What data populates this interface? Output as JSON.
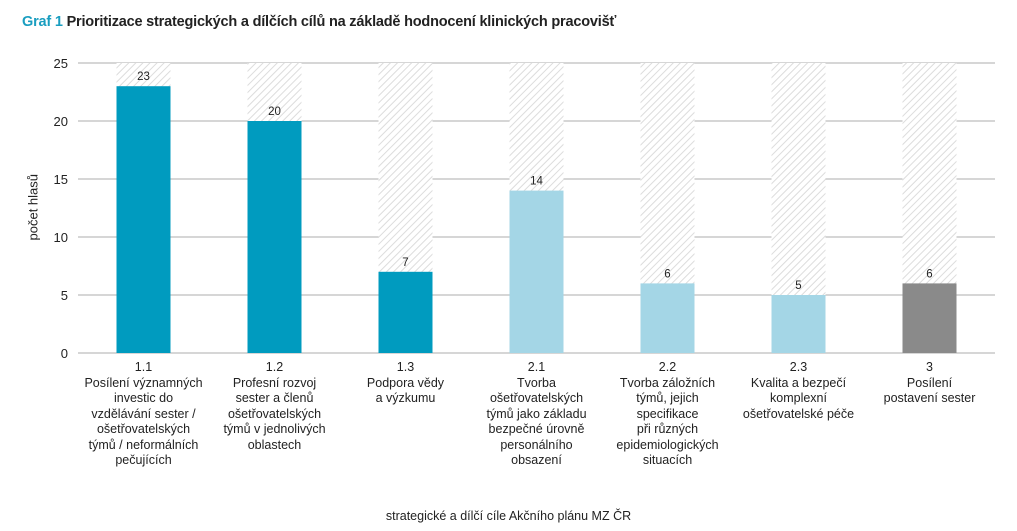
{
  "title": {
    "prefix": "Graf 1",
    "text": "Prioritizace strategických a dílčích cílů na základě hodnocení klinických pracovišť"
  },
  "colors": {
    "accent": "#1a9ec0",
    "dark_teal": "#009bbf",
    "light_blue": "#a4d6e6",
    "gray": "#8a8a8a",
    "grid": "#d6d6d6",
    "hatch": "#e2e2e2"
  },
  "chart_data": {
    "type": "bar",
    "title": "Graf 1 Prioritizace strategických a dílčích cílů na základě hodnocení klinických pracovišť",
    "xlabel": "strategické a dílčí cíle Akčního plánu MZ ČR",
    "ylabel": "počet hlasů",
    "ylim": [
      0,
      25
    ],
    "yticks": [
      "0",
      "5",
      "10",
      "15",
      "20",
      "25"
    ],
    "grid": true,
    "max_reference": 25,
    "categories": [
      {
        "code": "1.1",
        "label": "Posílení významných\ninvestic do\nvzdělávání sester /\nošetřovatelských\ntýmů / neformálních\npečujících",
        "value": 23,
        "color_key": "dark_teal"
      },
      {
        "code": "1.2",
        "label": "Profesní rozvoj\nsester a členů\nošetřovatelských\ntýmů v jednolivých\noblastech",
        "value": 20,
        "color_key": "dark_teal"
      },
      {
        "code": "1.3",
        "label": "Podpora vědy\na výzkumu",
        "value": 7,
        "color_key": "dark_teal"
      },
      {
        "code": "2.1",
        "label": "Tvorba\nošetřovatelských\ntýmů jako základu\nbezpečné úrovně\npersonálního\nobsazení",
        "value": 14,
        "color_key": "light_blue"
      },
      {
        "code": "2.2",
        "label": "Tvorba záložních\ntýmů, jejich\nspecifikace\npři různých\nepidemiologických\nsituacích",
        "value": 6,
        "color_key": "light_blue"
      },
      {
        "code": "2.3",
        "label": "Kvalita a bezpečí\nkomplexní\nošetřovatelské péče",
        "value": 5,
        "color_key": "light_blue"
      },
      {
        "code": "3",
        "label": "Posílení\npostavení sester",
        "value": 6,
        "color_key": "gray"
      }
    ]
  }
}
